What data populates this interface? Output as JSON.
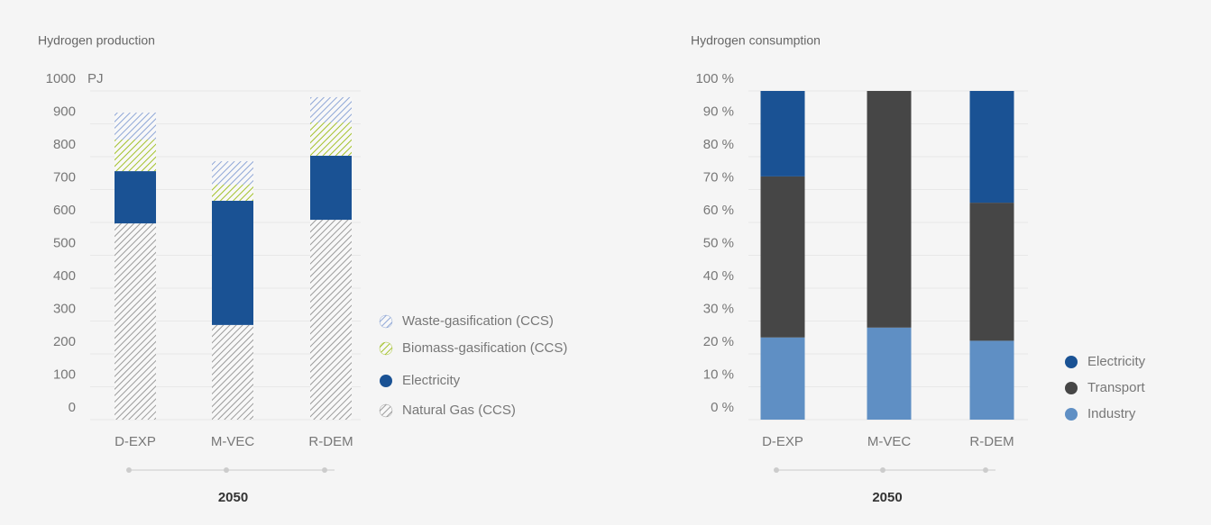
{
  "chart_data": [
    {
      "type": "stacked_bar",
      "title": "Hydrogen production",
      "y_unit": "PJ",
      "categories": [
        "D-EXP",
        "M-VEC",
        "R-DEM"
      ],
      "series": [
        {
          "name": "Natural Gas (CCS)",
          "color": "#9a9a9a",
          "hatch": true,
          "values": [
            597,
            288,
            608
          ]
        },
        {
          "name": "Electricity",
          "color": "#1a5294",
          "hatch": false,
          "values": [
            159,
            378,
            195
          ]
        },
        {
          "name": "Biomass-gasification (CCS)",
          "color": "#a3c12a",
          "hatch": true,
          "values": [
            96,
            49,
            101
          ]
        },
        {
          "name": "Waste-gasification (CCS)",
          "color": "#8ea6d6",
          "hatch": true,
          "values": [
            82,
            71,
            77
          ]
        }
      ],
      "ylim": [
        0,
        1000
      ],
      "yticks": [
        0,
        100,
        200,
        300,
        400,
        500,
        600,
        700,
        800,
        900,
        1000
      ],
      "grid": true,
      "timeline_label": "2050"
    },
    {
      "type": "stacked_bar",
      "title": "Hydrogen consumption",
      "categories": [
        "D-EXP",
        "M-VEC",
        "R-DEM"
      ],
      "series": [
        {
          "name": "Industry",
          "color": "#5f8fc4",
          "hatch": false,
          "values": [
            25,
            28,
            24
          ]
        },
        {
          "name": "Transport",
          "color": "#464646",
          "hatch": false,
          "values": [
            49,
            72,
            42
          ]
        },
        {
          "name": "Electricity",
          "color": "#1a5294",
          "hatch": false,
          "values": [
            26,
            0,
            34
          ]
        }
      ],
      "ylim": [
        0,
        100
      ],
      "yticks": [
        {
          "value": 0,
          "label": "0 %"
        },
        {
          "value": 10,
          "label": "10 %"
        },
        {
          "value": 20,
          "label": "20 %"
        },
        {
          "value": 30,
          "label": "30 %"
        },
        {
          "value": 40,
          "label": "40 %"
        },
        {
          "value": 50,
          "label": "50 %"
        },
        {
          "value": 60,
          "label": "60 %"
        },
        {
          "value": 70,
          "label": "70 %"
        },
        {
          "value": 80,
          "label": "80 %"
        },
        {
          "value": 90,
          "label": "90 %"
        },
        {
          "value": 100,
          "label": "100 %"
        }
      ],
      "grid": true,
      "timeline_label": "2050"
    }
  ]
}
